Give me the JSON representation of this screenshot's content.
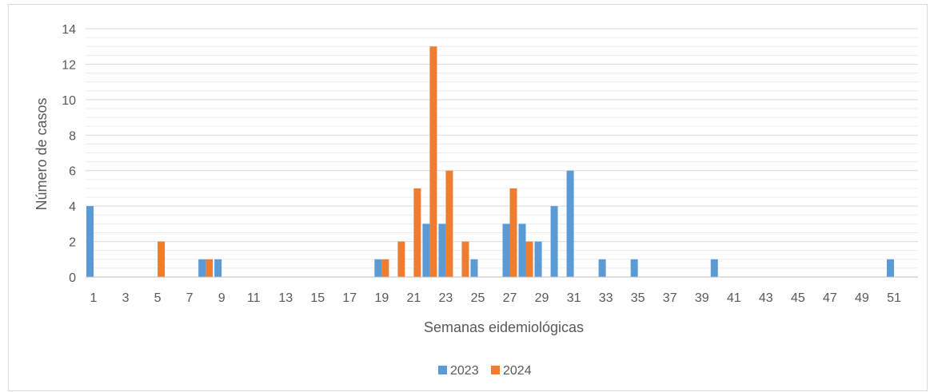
{
  "chart_data": {
    "type": "bar",
    "xlabel": "Semanas eidemiológicas",
    "ylabel": "Número de casos",
    "ylim": [
      0,
      14
    ],
    "yticks": [
      0,
      2,
      4,
      6,
      8,
      10,
      12,
      14
    ],
    "grid": true,
    "legend_position": "bottom",
    "x": [
      1,
      2,
      3,
      4,
      5,
      6,
      7,
      8,
      9,
      10,
      11,
      12,
      13,
      14,
      15,
      16,
      17,
      18,
      19,
      20,
      21,
      22,
      23,
      24,
      25,
      26,
      27,
      28,
      29,
      30,
      31,
      32,
      33,
      34,
      35,
      36,
      37,
      38,
      39,
      40,
      41,
      42,
      43,
      44,
      45,
      46,
      47,
      48,
      49,
      50,
      51,
      52
    ],
    "xtick_labels": [
      "1",
      "3",
      "5",
      "7",
      "9",
      "11",
      "13",
      "15",
      "17",
      "19",
      "21",
      "23",
      "25",
      "27",
      "29",
      "31",
      "33",
      "35",
      "37",
      "39",
      "41",
      "43",
      "45",
      "47",
      "49",
      "51"
    ],
    "series": [
      {
        "name": "2023",
        "color": "#5b9bd5",
        "values": [
          4,
          0,
          0,
          0,
          0,
          0,
          0,
          1,
          1,
          0,
          0,
          0,
          0,
          0,
          0,
          0,
          0,
          0,
          1,
          0,
          0,
          3,
          3,
          0,
          1,
          0,
          3,
          3,
          2,
          4,
          6,
          0,
          1,
          0,
          1,
          0,
          0,
          0,
          0,
          1,
          0,
          0,
          0,
          0,
          0,
          0,
          0,
          0,
          0,
          0,
          1,
          0
        ]
      },
      {
        "name": "2024",
        "color": "#ed7d31",
        "values": [
          0,
          0,
          0,
          0,
          2,
          0,
          0,
          1,
          0,
          0,
          0,
          0,
          0,
          0,
          0,
          0,
          0,
          0,
          1,
          2,
          5,
          13,
          6,
          2,
          0,
          0,
          5,
          2,
          0,
          0,
          0,
          0,
          0,
          0,
          0,
          0,
          0,
          0,
          0,
          0,
          0,
          0,
          0,
          0,
          0,
          0,
          0,
          0,
          0,
          0,
          0,
          0
        ]
      }
    ]
  }
}
